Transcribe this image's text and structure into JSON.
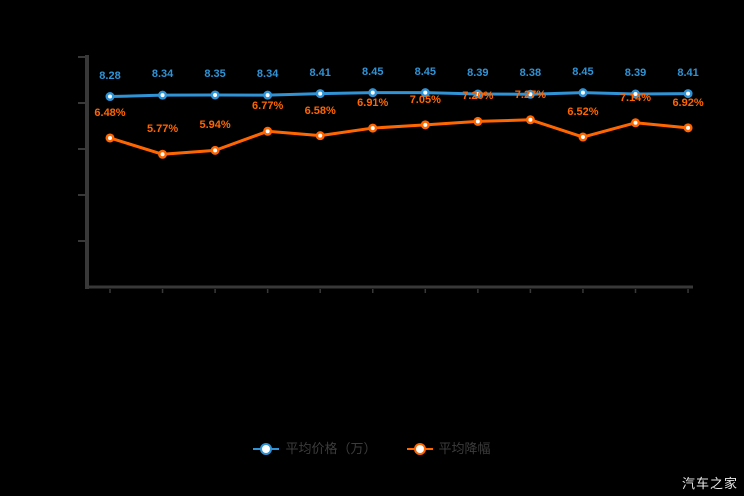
{
  "chart": {
    "watermark": "汽车之家",
    "legend": [
      {
        "label": "平均价格（万）",
        "color": "#3093d5"
      },
      {
        "label": "平均降幅",
        "color": "#ff6600"
      }
    ]
  },
  "chart_data": {
    "type": "line",
    "series": [
      {
        "name": "平均价格（万）",
        "color": "#3093d5",
        "values": [
          8.28,
          8.34,
          8.35,
          8.34,
          8.41,
          8.45,
          8.45,
          8.39,
          8.38,
          8.45,
          8.39,
          8.41
        ],
        "point_labels": [
          "8.28",
          "8.34",
          "8.35",
          "8.34",
          "8.41",
          "8.45",
          "8.45",
          "8.39",
          "8.38",
          "8.45",
          "8.39",
          "8.41"
        ]
      },
      {
        "name": "平均降幅",
        "color": "#ff6600",
        "values": [
          6.48,
          5.77,
          5.94,
          6.77,
          6.58,
          6.91,
          7.05,
          7.2,
          7.27,
          6.52,
          7.14,
          6.92
        ],
        "point_labels": [
          "6.48%",
          "5.77%",
          "5.94%",
          "6.77%",
          "6.58%",
          "6.91%",
          "7.05%",
          "7.20%",
          "7.27%",
          "6.52%",
          "7.14%",
          "6.92%"
        ]
      }
    ],
    "x_point_count": 12,
    "x_axis_labels_visible": false,
    "ylim": [
      0,
      10
    ],
    "ytick_step": 2,
    "grid": false,
    "legend_position": "bottom",
    "background_color": "#000000",
    "axis_color": "#383838"
  }
}
